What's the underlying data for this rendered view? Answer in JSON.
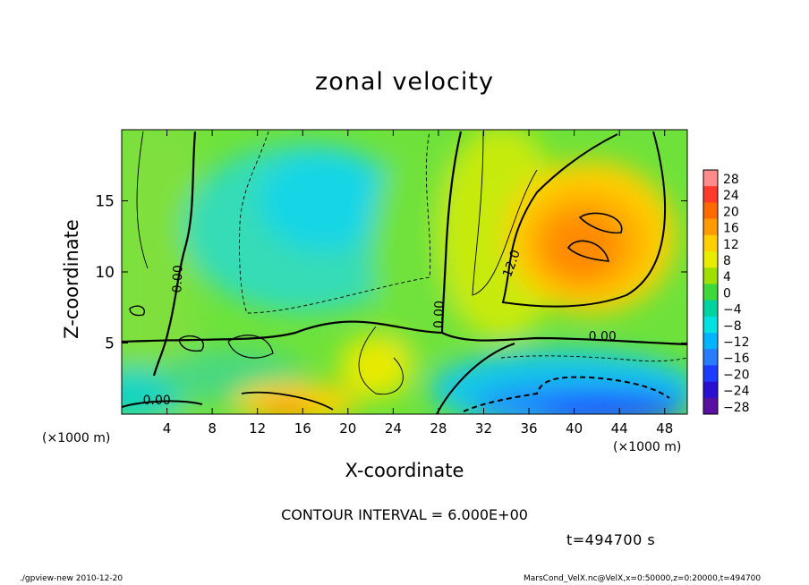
{
  "chart_data": {
    "type": "heatmap",
    "title": "zonal velocity",
    "xlabel": "X-coordinate",
    "ylabel": "Z-coordinate",
    "x_unit_label": "(×1000 m)",
    "xlim": [
      0,
      50
    ],
    "ylim": [
      0,
      20
    ],
    "x_ticks": [
      4,
      8,
      12,
      16,
      20,
      24,
      28,
      32,
      36,
      40,
      44,
      48
    ],
    "y_ticks": [
      5,
      10,
      15
    ],
    "colorbar_levels": [
      28,
      24,
      20,
      16,
      12,
      8,
      4,
      0,
      -4,
      -8,
      -12,
      -16,
      -20,
      -24,
      -28
    ],
    "colorbar_labels": [
      "28",
      "24",
      "20",
      "16",
      "12",
      "8",
      "4",
      "0",
      "−4",
      "−8",
      "−12",
      "−16",
      "−20",
      "−24",
      "−28"
    ],
    "colorbar_colors": [
      "#ff8c8c",
      "#ff3a2a",
      "#ff6a00",
      "#ff9a00",
      "#ffd000",
      "#e8ec00",
      "#9fe000",
      "#3ed83a",
      "#00d3a0",
      "#00e2e2",
      "#00b4ff",
      "#2a7cff",
      "#1e3cff",
      "#2a10d0",
      "#5a10a0"
    ],
    "contour_interval": "CONTOUR INTERVAL = 6.000E+00",
    "contour_labels": [
      {
        "text": "0.00",
        "x": 5.3,
        "z": 9.5,
        "rotate": -88
      },
      {
        "text": "0.00",
        "x": 28.4,
        "z": 7.0,
        "rotate": -88
      },
      {
        "text": "0.00",
        "x": 42.5,
        "z": 5.2,
        "rotate": 0
      },
      {
        "text": "0.00",
        "x": 3.1,
        "z": 0.7,
        "rotate": 0
      },
      {
        "text": "12.0",
        "x": 34.8,
        "z": 10.5,
        "rotate": -70
      }
    ],
    "time_label": "t=494700 s"
  },
  "footer": {
    "left": "./gpview-new   2010-12-20",
    "right": "MarsCond_VelX.nc@VelX,x=0:50000,z=0:20000,t=494700"
  }
}
